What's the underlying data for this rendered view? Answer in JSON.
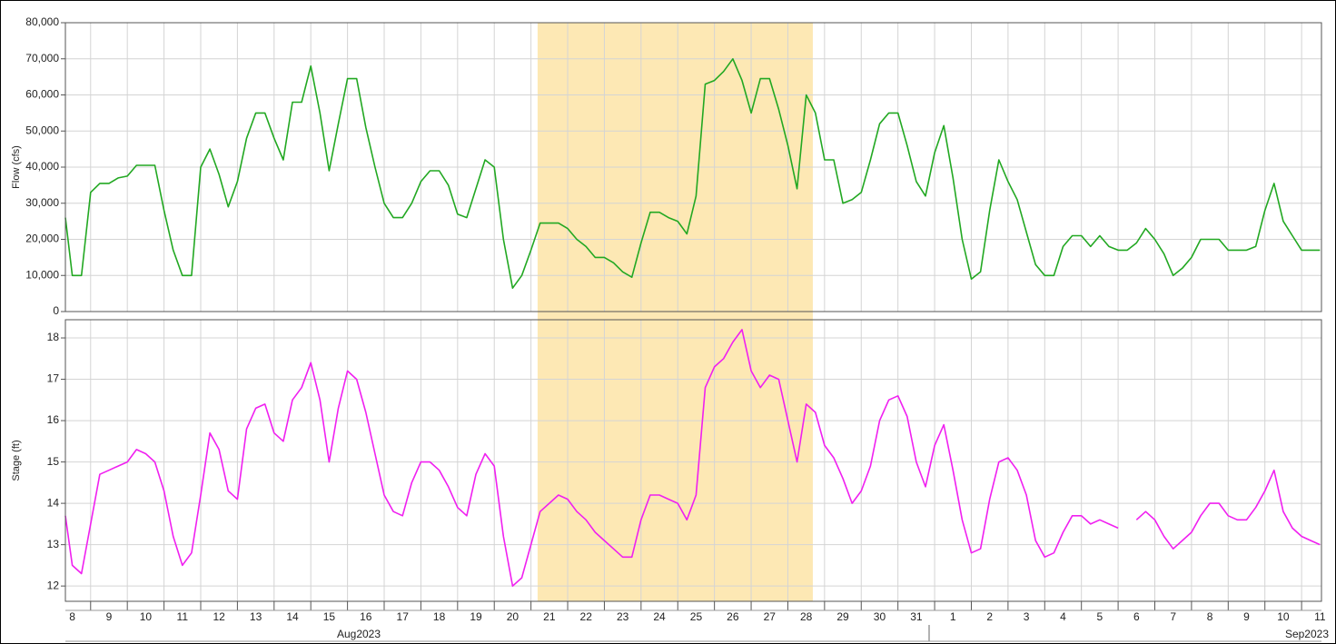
{
  "chart_data": {
    "type": "line",
    "xlim": [
      "2023-08-08T07:30",
      "2023-09-11T13:00"
    ],
    "highlight": {
      "range": [
        "2023-08-21T04:20",
        "2023-08-28T16:20"
      ],
      "color": "#fde8b4"
    },
    "grid": true,
    "months": [
      "Aug2023",
      "Sep2023"
    ],
    "xticks": [
      {
        "value": "2023-08-08",
        "label": "8"
      },
      {
        "value": "2023-08-09",
        "label": "9"
      },
      {
        "value": "2023-08-10",
        "label": "10"
      },
      {
        "value": "2023-08-11",
        "label": "11"
      },
      {
        "value": "2023-08-12",
        "label": "12"
      },
      {
        "value": "2023-08-13",
        "label": "13"
      },
      {
        "value": "2023-08-14",
        "label": "14"
      },
      {
        "value": "2023-08-15",
        "label": "15"
      },
      {
        "value": "2023-08-16",
        "label": "16"
      },
      {
        "value": "2023-08-17",
        "label": "17"
      },
      {
        "value": "2023-08-18",
        "label": "18"
      },
      {
        "value": "2023-08-19",
        "label": "19"
      },
      {
        "value": "2023-08-20",
        "label": "20"
      },
      {
        "value": "2023-08-21",
        "label": "21"
      },
      {
        "value": "2023-08-22",
        "label": "22"
      },
      {
        "value": "2023-08-23",
        "label": "23"
      },
      {
        "value": "2023-08-24",
        "label": "24"
      },
      {
        "value": "2023-08-25",
        "label": "25"
      },
      {
        "value": "2023-08-26",
        "label": "26"
      },
      {
        "value": "2023-08-27",
        "label": "27"
      },
      {
        "value": "2023-08-28",
        "label": "28"
      },
      {
        "value": "2023-08-29",
        "label": "29"
      },
      {
        "value": "2023-08-30",
        "label": "30"
      },
      {
        "value": "2023-08-31",
        "label": "31"
      },
      {
        "value": "2023-09-01",
        "label": "1"
      },
      {
        "value": "2023-09-02",
        "label": "2"
      },
      {
        "value": "2023-09-03",
        "label": "3"
      },
      {
        "value": "2023-09-04",
        "label": "4"
      },
      {
        "value": "2023-09-05",
        "label": "5"
      },
      {
        "value": "2023-09-06",
        "label": "6"
      },
      {
        "value": "2023-09-07",
        "label": "7"
      },
      {
        "value": "2023-09-08",
        "label": "8"
      },
      {
        "value": "2023-09-09",
        "label": "9"
      },
      {
        "value": "2023-09-10",
        "label": "10"
      },
      {
        "value": "2023-09-11",
        "label": "11"
      }
    ],
    "x": [
      "2023-08-08T07:30",
      "2023-08-08T12:00",
      "2023-08-08T18:00",
      "2023-08-09T00:00",
      "2023-08-09T06:00",
      "2023-08-09T12:00",
      "2023-08-09T18:00",
      "2023-08-10T00:00",
      "2023-08-10T06:00",
      "2023-08-10T12:00",
      "2023-08-10T18:00",
      "2023-08-11T00:00",
      "2023-08-11T06:00",
      "2023-08-11T12:00",
      "2023-08-11T18:00",
      "2023-08-12T00:00",
      "2023-08-12T06:00",
      "2023-08-12T12:00",
      "2023-08-12T18:00",
      "2023-08-13T00:00",
      "2023-08-13T06:00",
      "2023-08-13T12:00",
      "2023-08-13T18:00",
      "2023-08-14T00:00",
      "2023-08-14T06:00",
      "2023-08-14T12:00",
      "2023-08-14T18:00",
      "2023-08-15T00:00",
      "2023-08-15T06:00",
      "2023-08-15T12:00",
      "2023-08-15T18:00",
      "2023-08-16T00:00",
      "2023-08-16T06:00",
      "2023-08-16T12:00",
      "2023-08-16T18:00",
      "2023-08-17T00:00",
      "2023-08-17T06:00",
      "2023-08-17T12:00",
      "2023-08-17T18:00",
      "2023-08-18T00:00",
      "2023-08-18T06:00",
      "2023-08-18T12:00",
      "2023-08-18T18:00",
      "2023-08-19T00:00",
      "2023-08-19T06:00",
      "2023-08-19T12:00",
      "2023-08-19T18:00",
      "2023-08-20T00:00",
      "2023-08-20T06:00",
      "2023-08-20T12:00",
      "2023-08-20T18:00",
      "2023-08-21T00:00",
      "2023-08-21T06:00",
      "2023-08-21T12:00",
      "2023-08-21T18:00",
      "2023-08-22T00:00",
      "2023-08-22T06:00",
      "2023-08-22T12:00",
      "2023-08-22T18:00",
      "2023-08-23T00:00",
      "2023-08-23T06:00",
      "2023-08-23T12:00",
      "2023-08-23T18:00",
      "2023-08-24T00:00",
      "2023-08-24T06:00",
      "2023-08-24T12:00",
      "2023-08-24T18:00",
      "2023-08-25T00:00",
      "2023-08-25T06:00",
      "2023-08-25T12:00",
      "2023-08-25T18:00",
      "2023-08-26T00:00",
      "2023-08-26T06:00",
      "2023-08-26T12:00",
      "2023-08-26T18:00",
      "2023-08-27T00:00",
      "2023-08-27T06:00",
      "2023-08-27T12:00",
      "2023-08-27T18:00",
      "2023-08-28T00:00",
      "2023-08-28T06:00",
      "2023-08-28T12:00",
      "2023-08-28T18:00",
      "2023-08-29T00:00",
      "2023-08-29T06:00",
      "2023-08-29T12:00",
      "2023-08-29T18:00",
      "2023-08-30T00:00",
      "2023-08-30T06:00",
      "2023-08-30T12:00",
      "2023-08-30T18:00",
      "2023-08-31T00:00",
      "2023-08-31T06:00",
      "2023-08-31T12:00",
      "2023-08-31T18:00",
      "2023-09-01T00:00",
      "2023-09-01T06:00",
      "2023-09-01T12:00",
      "2023-09-01T18:00",
      "2023-09-02T00:00",
      "2023-09-02T06:00",
      "2023-09-02T12:00",
      "2023-09-02T18:00",
      "2023-09-03T00:00",
      "2023-09-03T06:00",
      "2023-09-03T12:00",
      "2023-09-03T18:00",
      "2023-09-04T00:00",
      "2023-09-04T06:00",
      "2023-09-04T12:00",
      "2023-09-04T18:00",
      "2023-09-05T00:00",
      "2023-09-05T06:00",
      "2023-09-05T12:00",
      "2023-09-05T18:00",
      "2023-09-06T00:00",
      "2023-09-06T06:00",
      "2023-09-06T12:00",
      "2023-09-06T18:00",
      "2023-09-07T00:00",
      "2023-09-07T06:00",
      "2023-09-07T12:00",
      "2023-09-07T18:00",
      "2023-09-08T00:00",
      "2023-09-08T06:00",
      "2023-09-08T12:00",
      "2023-09-08T18:00",
      "2023-09-09T00:00",
      "2023-09-09T06:00",
      "2023-09-09T12:00",
      "2023-09-09T18:00",
      "2023-09-10T00:00",
      "2023-09-10T06:00",
      "2023-09-10T12:00",
      "2023-09-10T18:00",
      "2023-09-11T00:00",
      "2023-09-11T06:00",
      "2023-09-11T12:00"
    ],
    "panels": [
      {
        "ylabel": "Flow (cfs)",
        "color": "#22a822",
        "ylim": [
          0,
          80000
        ],
        "yticks": [
          0,
          {
            "value": 10000,
            "label": "10,000"
          },
          {
            "value": 20000,
            "label": "20,000"
          },
          {
            "value": 30000,
            "label": "30,000"
          },
          {
            "value": 40000,
            "label": "40,000"
          },
          {
            "value": 50000,
            "label": "50,000"
          },
          {
            "value": 60000,
            "label": "60,000"
          },
          {
            "value": 70000,
            "label": "70,000"
          },
          {
            "value": 80000,
            "label": "80,000"
          }
        ],
        "values": [
          26000,
          10000,
          10000,
          33000,
          35500,
          35500,
          37000,
          37500,
          40500,
          40500,
          40500,
          28000,
          17000,
          10000,
          10000,
          40000,
          45000,
          38000,
          29000,
          36000,
          48000,
          55000,
          55000,
          48000,
          42000,
          58000,
          58000,
          68000,
          55000,
          39000,
          52000,
          64500,
          64500,
          51000,
          40000,
          30000,
          26000,
          26000,
          30000,
          36000,
          39000,
          39000,
          35000,
          27000,
          26000,
          34000,
          42000,
          40000,
          20000,
          6500,
          10000,
          17000,
          24500,
          24500,
          24500,
          23000,
          20000,
          18000,
          15000,
          15000,
          13500,
          11000,
          9500,
          19000,
          27500,
          27500,
          26000,
          25000,
          21500,
          32000,
          63000,
          64000,
          66500,
          70000,
          64000,
          55000,
          64500,
          64500,
          56000,
          46000,
          34000,
          60000,
          55000,
          42000,
          42000,
          30000,
          31000,
          33000,
          42000,
          52000,
          55000,
          55000,
          46000,
          36000,
          32000,
          44000,
          51500,
          37000,
          20000,
          9000,
          11000,
          28000,
          42000,
          36000,
          31000,
          22000,
          13000,
          10000,
          10000,
          18000,
          21000,
          21000,
          18000,
          21000,
          18000,
          17000,
          17000,
          19000,
          23000,
          20000,
          16000,
          10000,
          12000,
          15000,
          20000,
          20000,
          20000,
          17000,
          17000,
          17000,
          18000,
          28000,
          35500,
          25000,
          21000,
          17000,
          17000,
          17000
        ]
      },
      {
        "ylabel": "Stage (ft)",
        "color": "#f020f0",
        "ylim": [
          11.63,
          18.44
        ],
        "yticks": [
          12,
          13,
          14,
          15,
          16,
          17,
          18
        ],
        "values": [
          13.7,
          12.5,
          12.3,
          13.5,
          14.7,
          14.8,
          14.9,
          15.0,
          15.3,
          15.2,
          15.0,
          14.3,
          13.2,
          12.5,
          12.8,
          14.2,
          15.7,
          15.3,
          14.3,
          14.1,
          15.8,
          16.3,
          16.4,
          15.7,
          15.5,
          16.5,
          16.8,
          17.4,
          16.5,
          15.0,
          16.3,
          17.2,
          17.0,
          16.2,
          15.2,
          14.2,
          13.8,
          13.7,
          14.5,
          15.0,
          15.0,
          14.8,
          14.4,
          13.9,
          13.7,
          14.7,
          15.2,
          14.9,
          13.2,
          12.0,
          12.2,
          13.0,
          13.8,
          14.0,
          14.2,
          14.1,
          13.8,
          13.6,
          13.3,
          13.1,
          12.9,
          12.7,
          12.7,
          13.6,
          14.2,
          14.2,
          14.1,
          14.0,
          13.6,
          14.2,
          16.8,
          17.3,
          17.5,
          17.9,
          18.2,
          17.2,
          16.8,
          17.1,
          17.0,
          16.0,
          15.0,
          16.4,
          16.2,
          15.4,
          15.1,
          14.6,
          14.0,
          14.3,
          14.9,
          16.0,
          16.5,
          16.6,
          16.1,
          15.0,
          14.4,
          15.4,
          15.9,
          14.8,
          13.6,
          12.8,
          12.9,
          14.1,
          15.0,
          15.1,
          14.8,
          14.2,
          13.1,
          12.7,
          12.8,
          13.3,
          13.7,
          13.7,
          13.5,
          13.6,
          13.5,
          13.4,
          null,
          13.6,
          13.8,
          13.6,
          13.2,
          12.9,
          13.1,
          13.3,
          13.7,
          14.0,
          14.0,
          13.7,
          13.6,
          13.6,
          13.9,
          14.3,
          14.8,
          13.8,
          13.4,
          13.2,
          13.1,
          13.0
        ]
      }
    ]
  }
}
